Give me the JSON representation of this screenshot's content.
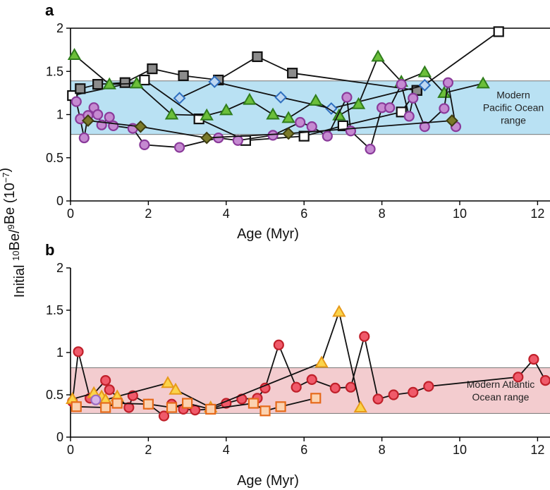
{
  "y_axis_label_parts": {
    "pre": "Initial ",
    "sup1": "10",
    "mid": "Be/",
    "sup2": "9",
    "post": "Be (10",
    "sup3": "−7",
    "end": ")"
  },
  "colors": {
    "pacific_band": "#b9e1f3",
    "atlantic_band": "#f3cccf",
    "black": "#111111",
    "gray_square": "#8c8c8c",
    "diamond_blue": "#bcd7f2",
    "diamond_blue_edge": "#2f6fbf",
    "triangle_green": "#6cbf3a",
    "triangle_green_edge": "#2f7d1c",
    "circle_purple": "#c58ad1",
    "circle_purple_edge": "#8a3a9a",
    "diamond_olive": "#7a7a2a",
    "circle_red": "#f05a6a",
    "circle_red_edge": "#c0202a",
    "triangle_yellow": "#fbd44a",
    "triangle_yellow_edge": "#e79a1a",
    "square_orange": "#fbd2b0",
    "square_orange_edge": "#e66a1a"
  },
  "chart_data": [
    {
      "type": "line",
      "panel_label": "a",
      "xlabel": "Age (Myr)",
      "xlim": [
        0,
        12.5
      ],
      "ylim": [
        0,
        2
      ],
      "xticks": [
        0,
        2,
        4,
        6,
        8,
        10,
        12
      ],
      "yticks": [
        0,
        0.5,
        1,
        1.5,
        2
      ],
      "ytick_labels": [
        "0",
        "0.5",
        "1",
        "1.5",
        "2"
      ],
      "band": {
        "y0": 0.77,
        "y1": 1.39,
        "label_lines": [
          "Modern",
          "Pacific Ocean",
          "range"
        ]
      },
      "series": [
        {
          "marker": "square-open",
          "points": [
            [
              0.05,
              1.22
            ],
            [
              1.9,
              1.4
            ],
            [
              3.3,
              0.95
            ],
            [
              4.5,
              0.7
            ],
            [
              6.0,
              0.75
            ],
            [
              7.0,
              0.87
            ],
            [
              8.5,
              1.03
            ],
            [
              8.9,
              1.28
            ],
            [
              11.0,
              1.96
            ]
          ]
        },
        {
          "marker": "square-gray",
          "points": [
            [
              0.25,
              1.3
            ],
            [
              0.7,
              1.35
            ],
            [
              1.4,
              1.37
            ],
            [
              2.1,
              1.53
            ],
            [
              2.9,
              1.45
            ],
            [
              3.8,
              1.4
            ],
            [
              4.8,
              1.67
            ],
            [
              5.7,
              1.48
            ],
            [
              8.9,
              1.28
            ]
          ]
        },
        {
          "marker": "diamond-blue",
          "points": [
            [
              2.8,
              1.19
            ],
            [
              3.7,
              1.38
            ],
            [
              5.4,
              1.2
            ],
            [
              6.7,
              1.07
            ],
            [
              9.1,
              1.34
            ]
          ]
        },
        {
          "marker": "triangle-green",
          "points": [
            [
              0.1,
              1.69
            ],
            [
              1.0,
              1.35
            ],
            [
              1.7,
              1.36
            ],
            [
              2.6,
              1.0
            ],
            [
              3.5,
              0.99
            ],
            [
              4.0,
              1.05
            ],
            [
              4.6,
              1.17
            ],
            [
              5.2,
              1.0
            ],
            [
              5.6,
              0.96
            ],
            [
              6.3,
              1.16
            ],
            [
              6.9,
              0.99
            ],
            [
              7.4,
              1.12
            ],
            [
              7.9,
              1.67
            ],
            [
              8.5,
              1.38
            ],
            [
              9.1,
              1.49
            ],
            [
              9.6,
              1.25
            ],
            [
              10.6,
              1.36
            ]
          ]
        },
        {
          "marker": "circle-purple",
          "points": [
            [
              0.15,
              1.15
            ],
            [
              0.25,
              0.95
            ],
            [
              0.35,
              0.73
            ],
            [
              0.45,
              0.99
            ],
            [
              0.6,
              1.08
            ],
            [
              0.7,
              1.0
            ],
            [
              0.8,
              0.88
            ],
            [
              1.0,
              0.97
            ],
            [
              1.1,
              0.87
            ],
            [
              1.6,
              0.84
            ],
            [
              1.9,
              0.65
            ],
            [
              2.8,
              0.62
            ],
            [
              3.8,
              0.73
            ],
            [
              4.3,
              0.7
            ],
            [
              5.2,
              0.76
            ],
            [
              5.9,
              0.91
            ],
            [
              6.2,
              0.86
            ],
            [
              6.6,
              0.75
            ],
            [
              7.1,
              1.2
            ],
            [
              7.2,
              0.81
            ],
            [
              7.7,
              0.6
            ],
            [
              8.0,
              1.08
            ],
            [
              8.2,
              1.08
            ],
            [
              8.5,
              1.35
            ],
            [
              8.7,
              0.98
            ],
            [
              8.8,
              1.19
            ],
            [
              9.1,
              0.86
            ],
            [
              9.6,
              1.07
            ],
            [
              9.7,
              1.37
            ],
            [
              9.9,
              0.86
            ]
          ]
        },
        {
          "marker": "diamond-olive",
          "points": [
            [
              0.45,
              0.93
            ],
            [
              1.8,
              0.86
            ],
            [
              3.5,
              0.73
            ],
            [
              5.6,
              0.78
            ],
            [
              9.8,
              0.93
            ]
          ]
        }
      ]
    },
    {
      "type": "line",
      "panel_label": "b",
      "xlabel": "Age (Myr)",
      "xlim": [
        0,
        12.5
      ],
      "ylim": [
        0,
        2
      ],
      "xticks": [
        0,
        2,
        4,
        6,
        8,
        10,
        12
      ],
      "yticks": [
        0,
        0.5,
        1,
        1.5,
        2
      ],
      "ytick_labels": [
        "0",
        "0.5",
        "1",
        "1.5",
        "2"
      ],
      "band": {
        "y0": 0.28,
        "y1": 0.82,
        "label_lines": [
          "Modern Atlantic",
          "Ocean range"
        ]
      },
      "series": [
        {
          "marker": "circle-red",
          "points": [
            [
              0.05,
              0.42
            ],
            [
              0.2,
              1.01
            ],
            [
              0.5,
              0.46
            ],
            [
              0.9,
              0.67
            ],
            [
              1.0,
              0.56
            ],
            [
              1.5,
              0.35
            ],
            [
              1.6,
              0.49
            ],
            [
              2.0,
              0.39
            ],
            [
              2.4,
              0.25
            ],
            [
              2.6,
              0.39
            ],
            [
              2.9,
              0.33
            ],
            [
              3.2,
              0.32
            ],
            [
              3.6,
              0.33
            ],
            [
              4.0,
              0.4
            ],
            [
              4.4,
              0.45
            ],
            [
              4.8,
              0.46
            ],
            [
              5.0,
              0.58
            ],
            [
              5.35,
              1.09
            ],
            [
              5.8,
              0.59
            ],
            [
              6.2,
              0.68
            ],
            [
              6.8,
              0.58
            ],
            [
              7.2,
              0.59
            ],
            [
              7.55,
              1.19
            ],
            [
              7.9,
              0.45
            ],
            [
              8.3,
              0.5
            ],
            [
              8.8,
              0.53
            ],
            [
              9.2,
              0.6
            ],
            [
              11.5,
              0.71
            ],
            [
              11.9,
              0.92
            ],
            [
              12.2,
              0.67
            ]
          ]
        },
        {
          "marker": "triangle-yellow",
          "points": [
            [
              0.05,
              0.45
            ],
            [
              0.6,
              0.52
            ],
            [
              0.8,
              0.48
            ],
            [
              0.9,
              0.44
            ],
            [
              1.2,
              0.48
            ],
            [
              2.5,
              0.64
            ],
            [
              2.7,
              0.56
            ],
            [
              3.6,
              0.35
            ],
            [
              6.45,
              0.88
            ],
            [
              6.9,
              1.48
            ],
            [
              7.45,
              0.35
            ]
          ]
        },
        {
          "marker": "circle-lavender",
          "points": [
            [
              0.65,
              0.44
            ]
          ]
        },
        {
          "marker": "square-orange",
          "points": [
            [
              0.15,
              0.36
            ],
            [
              0.9,
              0.35
            ],
            [
              1.2,
              0.4
            ],
            [
              2.0,
              0.39
            ],
            [
              2.6,
              0.35
            ],
            [
              3.0,
              0.4
            ],
            [
              3.6,
              0.33
            ],
            [
              4.7,
              0.4
            ],
            [
              5.0,
              0.31
            ],
            [
              5.4,
              0.36
            ],
            [
              6.3,
              0.46
            ]
          ]
        }
      ]
    }
  ]
}
